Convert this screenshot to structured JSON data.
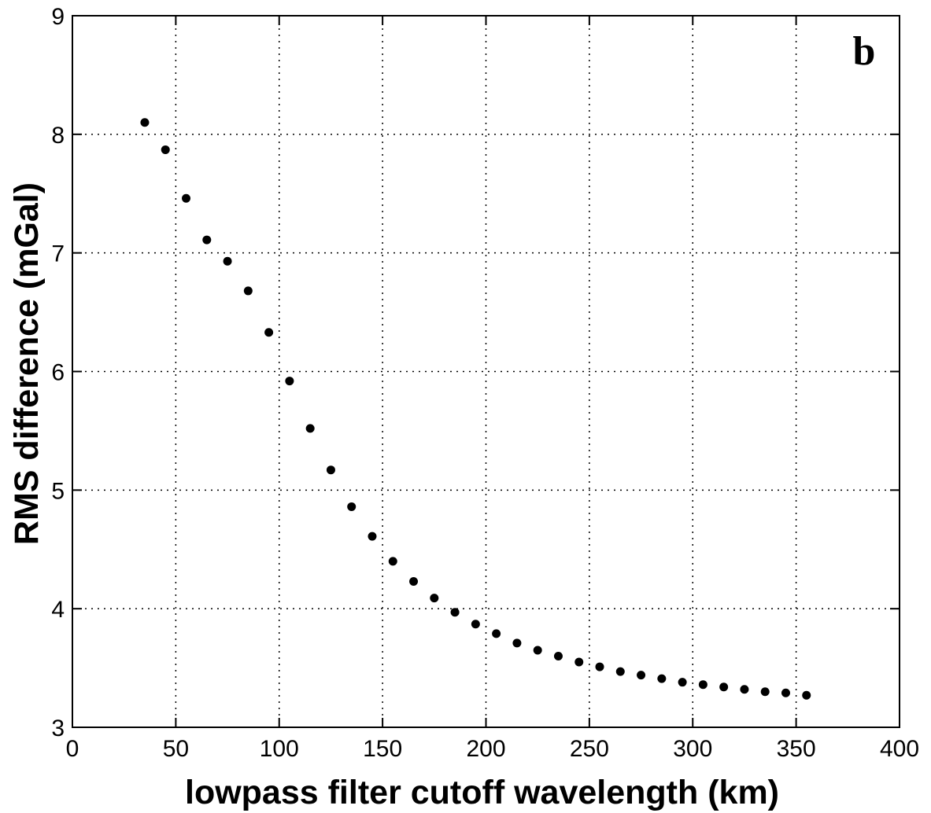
{
  "chart_data": {
    "type": "scatter",
    "title": "",
    "panel_label": "b",
    "xlabel": "lowpass filter cutoff wavelength (km)",
    "ylabel": "RMS difference (mGal)",
    "xlim": [
      0,
      400
    ],
    "ylim": [
      3,
      9
    ],
    "xticks": [
      0,
      50,
      100,
      150,
      200,
      250,
      300,
      350,
      400
    ],
    "yticks": [
      3,
      4,
      5,
      6,
      7,
      8,
      9
    ],
    "grid": true,
    "grid_style": "dotted",
    "marker_color": "#000000",
    "series": [
      {
        "x": [
          35,
          45,
          55,
          65,
          75,
          85,
          95,
          105,
          115,
          125,
          135,
          145,
          155,
          165,
          175,
          185,
          195,
          205,
          215,
          225,
          235,
          245,
          255,
          265,
          275,
          285,
          295,
          305,
          315,
          325,
          335,
          345,
          355
        ],
        "y": [
          8.1,
          7.87,
          7.46,
          7.11,
          6.93,
          6.68,
          6.33,
          5.92,
          5.52,
          5.17,
          4.86,
          4.61,
          4.4,
          4.23,
          4.09,
          3.97,
          3.87,
          3.79,
          3.71,
          3.65,
          3.6,
          3.55,
          3.51,
          3.47,
          3.44,
          3.41,
          3.38,
          3.36,
          3.34,
          3.32,
          3.3,
          3.29,
          3.27
        ]
      }
    ]
  }
}
